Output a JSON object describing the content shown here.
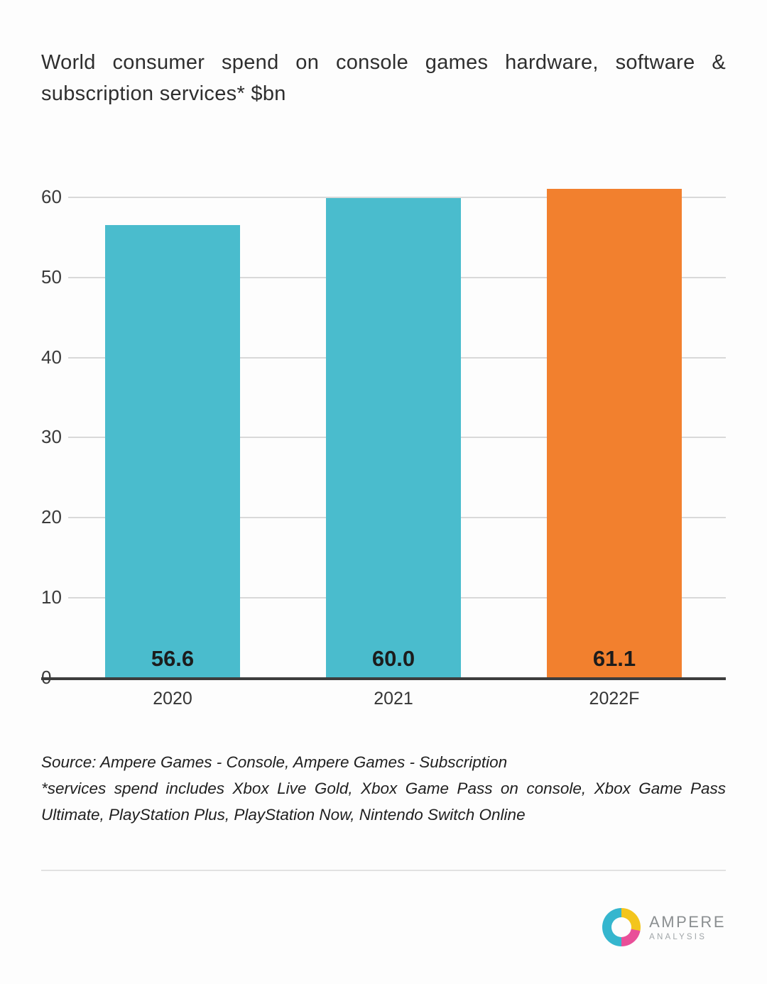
{
  "title": "World consumer spend on console games hardware, software & subscription services* $bn",
  "chart_data": {
    "type": "bar",
    "title": "World consumer spend on console games hardware, software & subscription services* $bn",
    "categories": [
      "2020",
      "2021",
      "2022F"
    ],
    "values": [
      56.6,
      60.0,
      61.1
    ],
    "value_labels": [
      "56.6",
      "60.0",
      "61.1"
    ],
    "bar_colors": [
      "#4abccd",
      "#4abccd",
      "#f2802e"
    ],
    "xlabel": "",
    "ylabel": "",
    "ylim": [
      0,
      60
    ],
    "scale_max": 62,
    "yticks": [
      0,
      10,
      20,
      30,
      40,
      50,
      60
    ],
    "grid": true,
    "legend": false
  },
  "source": {
    "line1": "Source: Ampere Games - Console, Ampere Games - Subscription",
    "line2": "*services spend includes Xbox Live Gold, Xbox Game Pass on console, Xbox Game Pass Ultimate, PlayStation Plus, PlayStation Now, Nintendo Switch Online"
  },
  "logo": {
    "name": "AMPERE",
    "sub": "ANALYSIS"
  }
}
